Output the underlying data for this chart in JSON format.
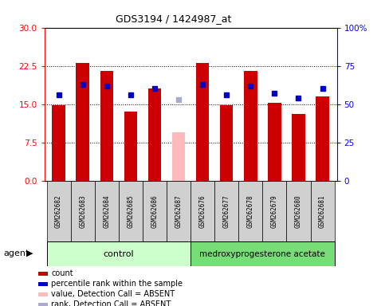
{
  "title": "GDS3194 / 1424987_at",
  "samples": [
    "GSM262682",
    "GSM262683",
    "GSM262684",
    "GSM262685",
    "GSM262686",
    "GSM262687",
    "GSM262676",
    "GSM262677",
    "GSM262678",
    "GSM262679",
    "GSM262680",
    "GSM262681"
  ],
  "count_values": [
    14.8,
    23.1,
    21.5,
    13.5,
    18.0,
    null,
    23.1,
    14.8,
    21.5,
    15.2,
    13.0,
    16.5
  ],
  "absent_value": 9.5,
  "rank_pct": [
    56,
    63,
    62,
    56,
    60,
    null,
    63,
    56,
    62,
    57,
    54,
    60
  ],
  "absent_rank_pct": 53,
  "is_absent": [
    false,
    false,
    false,
    false,
    false,
    true,
    false,
    false,
    false,
    false,
    false,
    false
  ],
  "control_label": "control",
  "treatment_label": "medroxyprogesterone acetate",
  "agent_label": "agent",
  "ylim_left": [
    0,
    30
  ],
  "yticks_left": [
    0,
    7.5,
    15.0,
    22.5,
    30
  ],
  "ylim_right": [
    0,
    100
  ],
  "yticks_right": [
    0,
    25,
    50,
    75,
    100
  ],
  "bar_color_normal": "#cc0000",
  "bar_color_absent": "#ffbbbb",
  "rank_color_normal": "#0000cc",
  "rank_color_absent": "#aaaacc",
  "bg_color_xticklabels": "#d0d0d0",
  "control_bg": "#ccffcc",
  "treatment_bg": "#77dd77",
  "bar_width": 0.55,
  "rank_marker_size": 5,
  "legend_items": [
    {
      "color": "#cc0000",
      "label": "count"
    },
    {
      "color": "#0000cc",
      "label": "percentile rank within the sample"
    },
    {
      "color": "#ffbbbb",
      "label": "value, Detection Call = ABSENT"
    },
    {
      "color": "#aaaacc",
      "label": "rank, Detection Call = ABSENT"
    }
  ]
}
